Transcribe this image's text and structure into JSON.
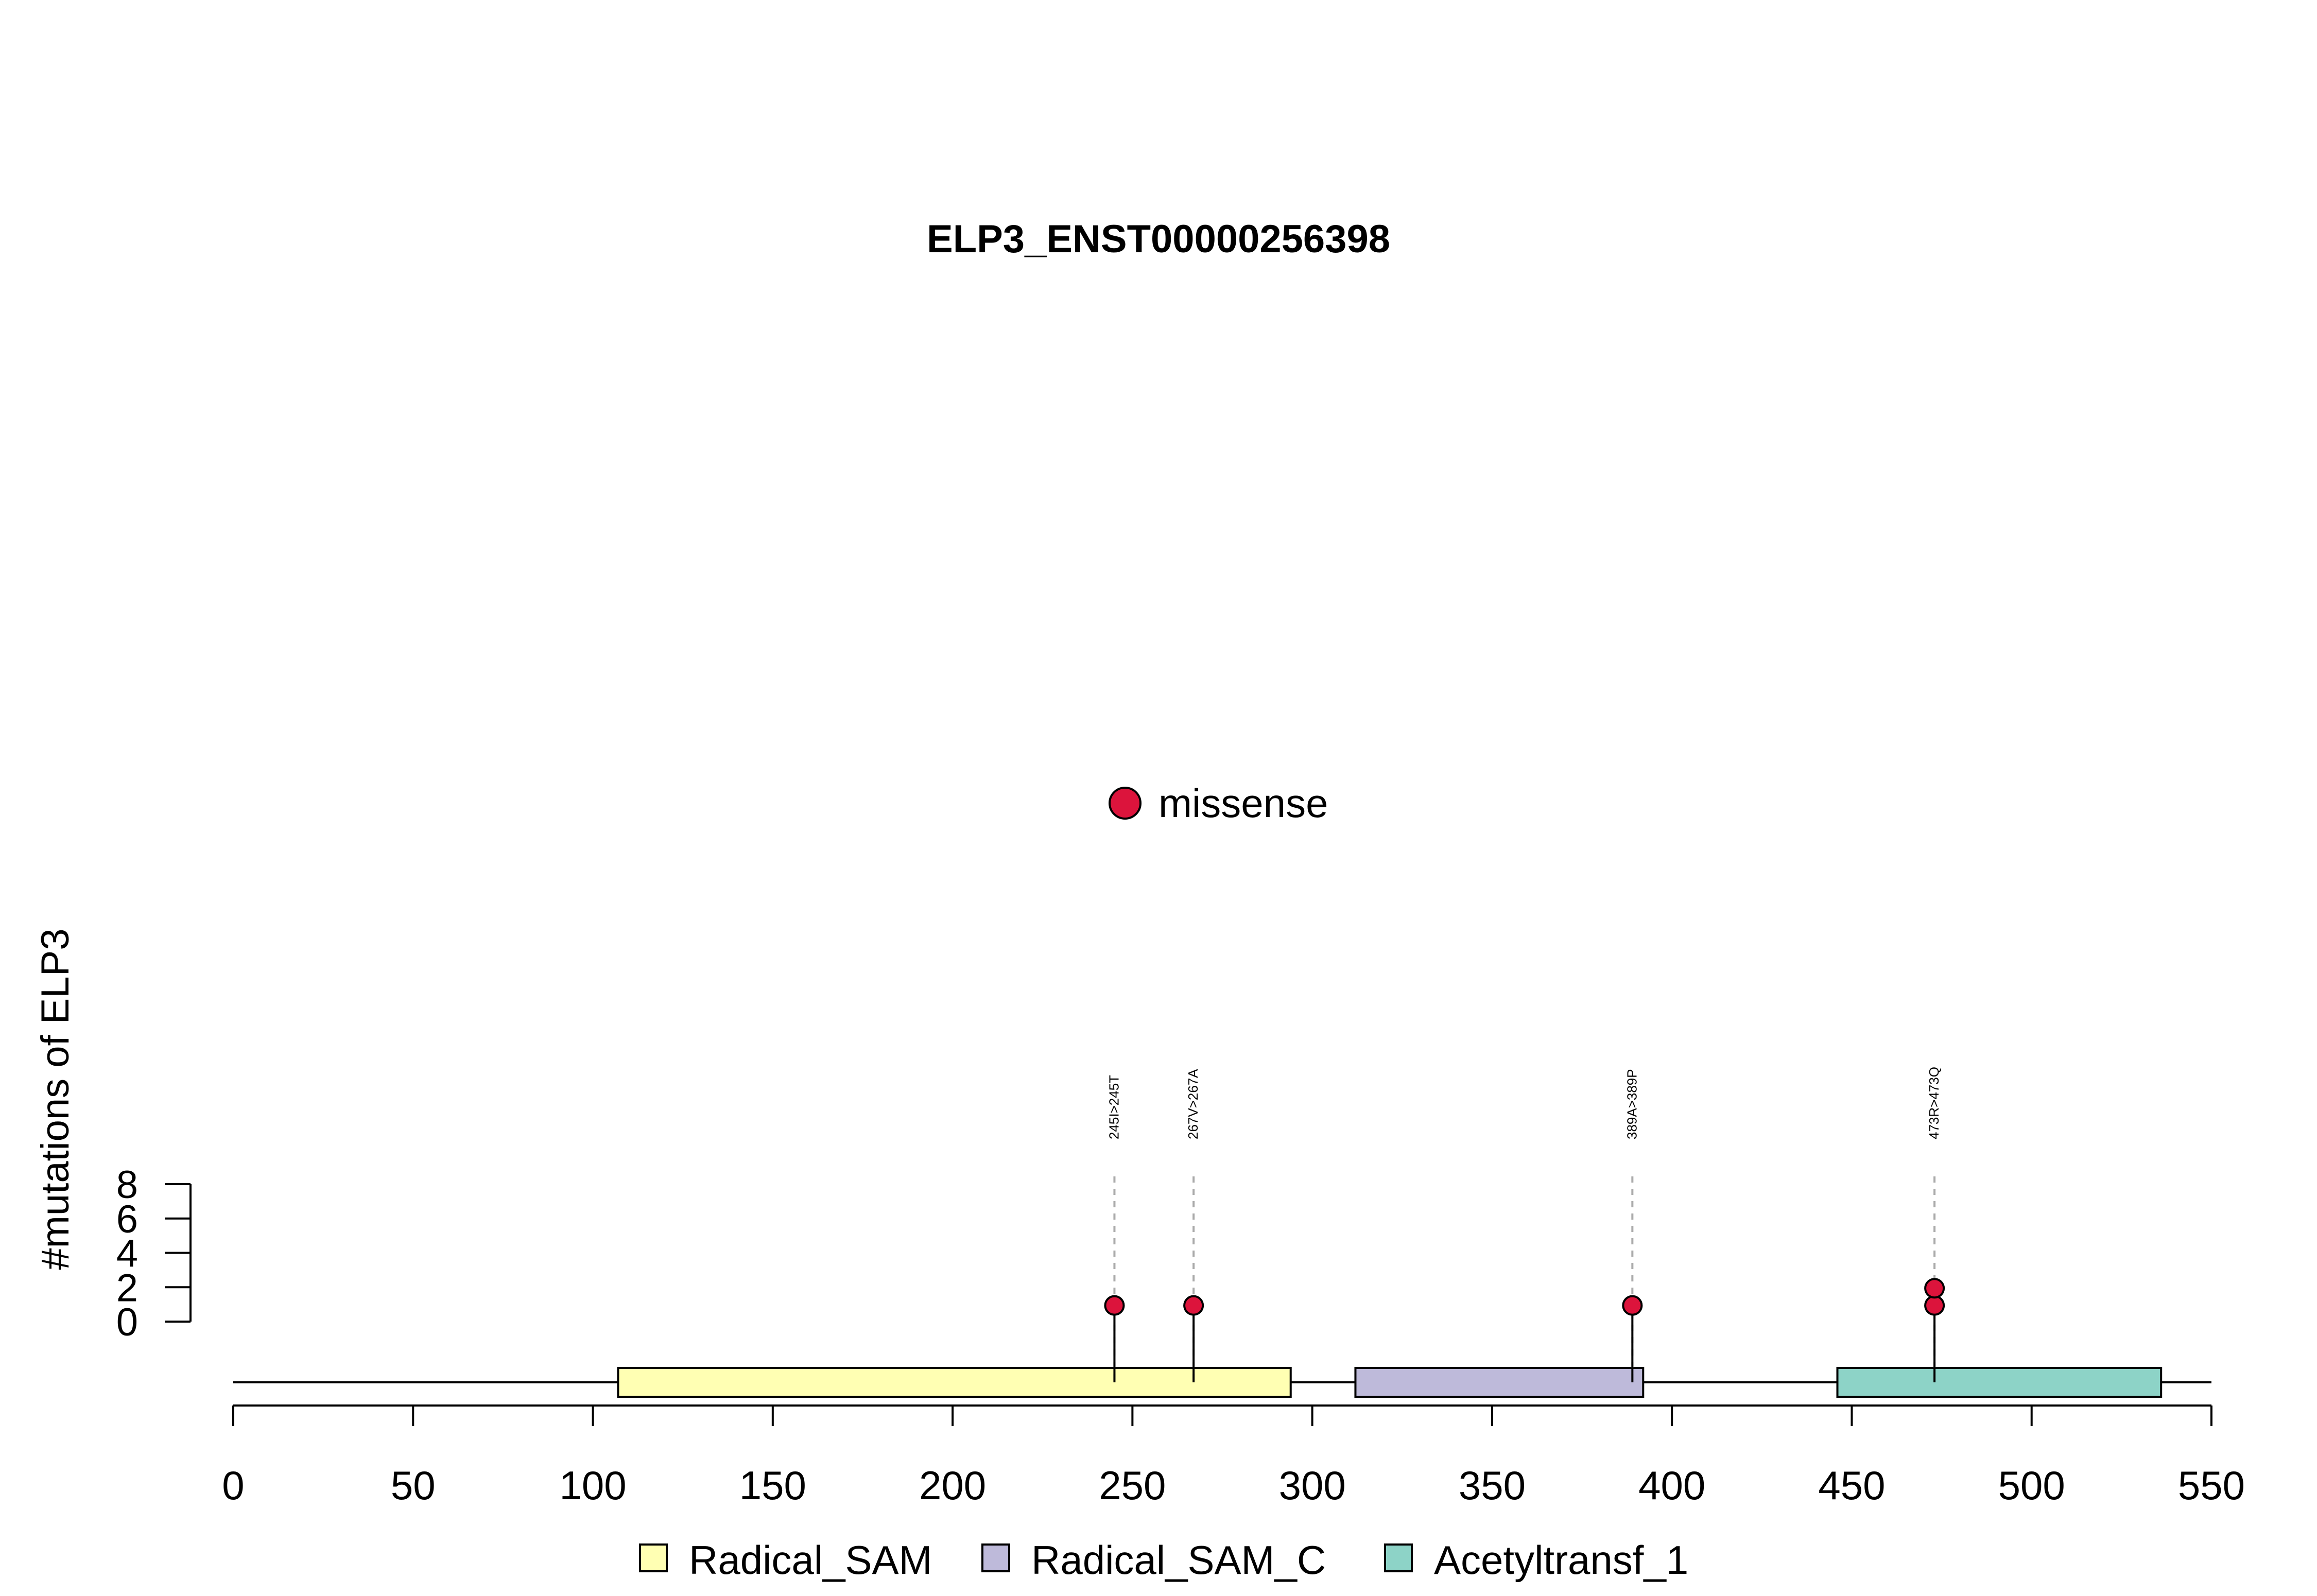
{
  "chart_data": {
    "type": "lollipop",
    "title": "ELP3_ENST00000256398",
    "ylabel": "#mutations of ELP3",
    "xlim": [
      0,
      550
    ],
    "x_ticks": [
      0,
      50,
      100,
      150,
      200,
      250,
      300,
      350,
      400,
      450,
      500,
      550
    ],
    "ylim": [
      0,
      8
    ],
    "y_ticks": [
      0,
      2,
      4,
      6,
      8
    ],
    "legend_top": {
      "label": "missense",
      "color": "#DC143C"
    },
    "domains": [
      {
        "name": "Radical_SAM",
        "start": 107,
        "end": 294,
        "color": "#FFFFB3"
      },
      {
        "name": "Radical_SAM_C",
        "start": 312,
        "end": 392,
        "color": "#BEBADA"
      },
      {
        "name": "Acetyltransf_1",
        "start": 446,
        "end": 536,
        "color": "#8DD3C7"
      }
    ],
    "mutations": [
      {
        "position": 245,
        "label": "245I>245T",
        "count": 1,
        "type": "missense"
      },
      {
        "position": 267,
        "label": "267V>267A",
        "count": 1,
        "type": "missense"
      },
      {
        "position": 389,
        "label": "389A>389P",
        "count": 1,
        "type": "missense"
      },
      {
        "position": 473,
        "label": "473R>473Q",
        "count": 2,
        "type": "missense"
      }
    ],
    "marker_color": "#DC143C"
  }
}
